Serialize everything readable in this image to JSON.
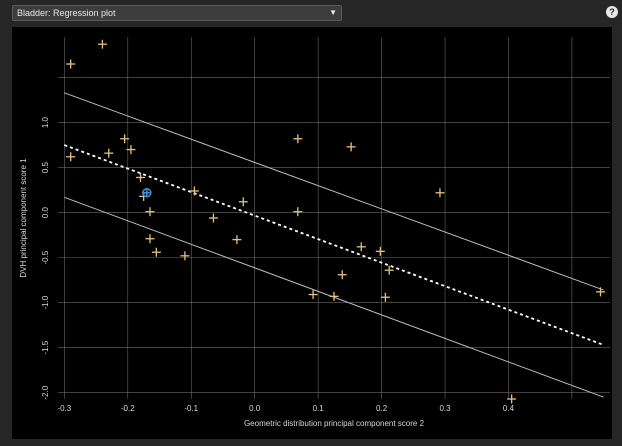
{
  "header": {
    "select_value": "Bladder: Regression plot",
    "help_icon": "help-icon",
    "help_glyph": "?"
  },
  "colors": {
    "background": "#000000",
    "grid": "#8a8a8a",
    "point": "#e6c27a",
    "highlight": "#3f8fd2",
    "regression_line": "#ffffff",
    "bound_line": "#bdbdbd",
    "text": "#d8d8d8"
  },
  "chart_data": {
    "type": "scatter",
    "xlabel": "Geometric distribution principal component score 2",
    "ylabel": "DVH principal component score 1",
    "xlim": [
      -0.31,
      0.56
    ],
    "ylim": [
      -2.07,
      1.95
    ],
    "x_ticks": [
      -0.3,
      -0.2,
      -0.1,
      0.0,
      0.1,
      0.2,
      0.3,
      0.4
    ],
    "x_tick_labels": [
      "-0.3",
      "-0.2",
      "-0.1",
      "0.0",
      "0.1",
      "0.2",
      "0.3",
      "0.4"
    ],
    "y_ticks": [
      -2.0,
      -1.5,
      -1.0,
      -0.5,
      0.0,
      0.5,
      1.0
    ],
    "y_tick_labels": [
      "-2.0",
      "-1.5",
      "-1.0",
      "-0.5",
      "0.0",
      "0.5",
      "1.0"
    ],
    "x_grid": [
      -0.3,
      -0.2,
      -0.1,
      0.0,
      0.1,
      0.2,
      0.3,
      0.4,
      0.5
    ],
    "y_grid": [
      -2.0,
      -1.5,
      -1.0,
      -0.5,
      0.0,
      0.5,
      1.0,
      1.5
    ],
    "grid": true,
    "series": [
      {
        "points": [
          {
            "x": -0.29,
            "y": 1.65
          },
          {
            "x": -0.24,
            "y": 1.87
          },
          {
            "x": -0.29,
            "y": 0.62
          },
          {
            "x": -0.23,
            "y": 0.66
          },
          {
            "x": -0.205,
            "y": 0.82
          },
          {
            "x": -0.195,
            "y": 0.7
          },
          {
            "x": -0.18,
            "y": 0.39
          },
          {
            "x": -0.175,
            "y": 0.18
          },
          {
            "x": -0.165,
            "y": 0.01
          },
          {
            "x": -0.165,
            "y": -0.29
          },
          {
            "x": -0.155,
            "y": -0.44
          },
          {
            "x": -0.11,
            "y": -0.48
          },
          {
            "x": -0.095,
            "y": 0.24
          },
          {
            "x": -0.065,
            "y": -0.06
          },
          {
            "x": -0.028,
            "y": -0.3
          },
          {
            "x": -0.018,
            "y": 0.12
          },
          {
            "x": 0.068,
            "y": 0.82
          },
          {
            "x": 0.068,
            "y": 0.01
          },
          {
            "x": 0.092,
            "y": -0.91
          },
          {
            "x": 0.125,
            "y": -0.93
          },
          {
            "x": 0.138,
            "y": -0.69
          },
          {
            "x": 0.152,
            "y": 0.73
          },
          {
            "x": 0.168,
            "y": -0.38
          },
          {
            "x": 0.198,
            "y": -0.43
          },
          {
            "x": 0.206,
            "y": -0.94
          },
          {
            "x": 0.212,
            "y": -0.64
          },
          {
            "x": 0.292,
            "y": 0.22
          },
          {
            "x": 0.405,
            "y": -2.07
          },
          {
            "x": 0.545,
            "y": -0.88
          }
        ]
      }
    ],
    "highlight_points": [
      {
        "x": -0.17,
        "y": 0.22
      }
    ],
    "regression_line": {
      "x": [
        -0.3,
        0.55
      ],
      "y": [
        0.75,
        -1.47
      ]
    },
    "upper_bound_line": {
      "x": [
        -0.3,
        0.55
      ],
      "y": [
        1.33,
        -0.86
      ]
    },
    "lower_bound_line": {
      "x": [
        -0.3,
        0.55
      ],
      "y": [
        0.17,
        -2.05
      ]
    }
  }
}
